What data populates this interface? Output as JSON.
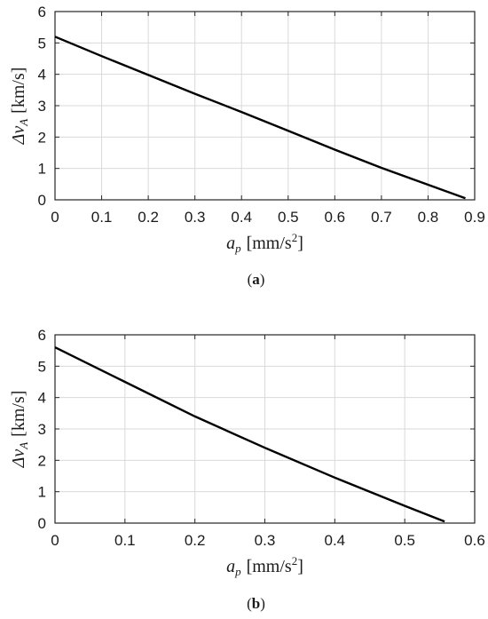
{
  "chart_data": [
    {
      "panel": "a",
      "type": "line",
      "xlabel_main": "a",
      "xlabel_sub": "p",
      "xlabel_unit": "[mm/s",
      "xlabel_exp": "2",
      "xlabel_close": "]",
      "ylabel_main": "Δv",
      "ylabel_sub": "A",
      "ylabel_unit": "[km/s]",
      "xlim": [
        0,
        0.9
      ],
      "ylim": [
        0,
        6
      ],
      "xticks": [
        "0",
        "0.1",
        "0.2",
        "0.3",
        "0.4",
        "0.5",
        "0.6",
        "0.7",
        "0.8",
        "0.9"
      ],
      "yticks": [
        "0",
        "1",
        "2",
        "3",
        "4",
        "5",
        "6"
      ],
      "grid": true,
      "panel_label_open": "(",
      "panel_label_letter": "a",
      "panel_label_close": ")",
      "series": [
        {
          "x": [
            0,
            0.1,
            0.2,
            0.3,
            0.4,
            0.5,
            0.6,
            0.7,
            0.8,
            0.88
          ],
          "y": [
            5.2,
            4.58,
            3.98,
            3.38,
            2.8,
            2.2,
            1.6,
            1.02,
            0.48,
            0.05
          ]
        }
      ]
    },
    {
      "panel": "b",
      "type": "line",
      "xlabel_main": "a",
      "xlabel_sub": "p",
      "xlabel_unit": "[mm/s",
      "xlabel_exp": "2",
      "xlabel_close": "]",
      "ylabel_main": "Δv",
      "ylabel_sub": "A",
      "ylabel_unit": "[km/s]",
      "xlim": [
        0,
        0.6
      ],
      "ylim": [
        0,
        6
      ],
      "xticks": [
        "0",
        "0.1",
        "0.2",
        "0.3",
        "0.4",
        "0.5",
        "0.6"
      ],
      "yticks": [
        "0",
        "1",
        "2",
        "3",
        "4",
        "5",
        "6"
      ],
      "grid": true,
      "panel_label_open": "(",
      "panel_label_letter": "b",
      "panel_label_close": ")",
      "series": [
        {
          "x": [
            0,
            0.1,
            0.2,
            0.3,
            0.4,
            0.5,
            0.557
          ],
          "y": [
            5.6,
            4.5,
            3.4,
            2.4,
            1.45,
            0.55,
            0.05
          ]
        }
      ]
    }
  ]
}
